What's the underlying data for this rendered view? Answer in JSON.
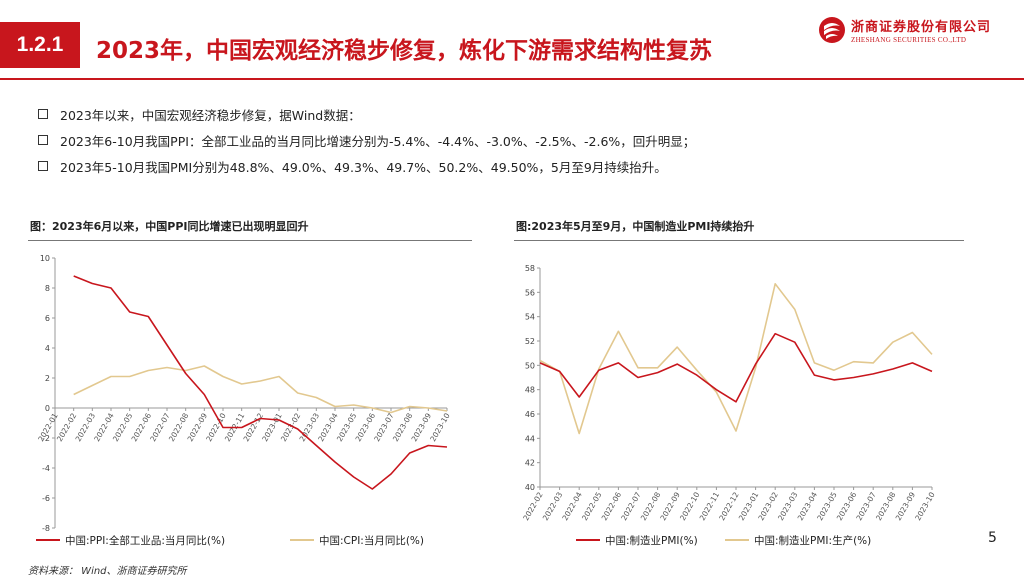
{
  "header": {
    "section": "1.2.1",
    "title": "2023年，中国宏观经济稳步修复，炼化下游需求结构性复苏"
  },
  "logo": {
    "name_cn": "浙商证券股份有限公司",
    "name_en": "ZHESHANG SECURITIES CO.,LTD"
  },
  "bullets": [
    "2023年以来，中国宏观经济稳步修复，据Wind数据：",
    "2023年6-10月我国PPI：全部工业品的当月同比增速分别为-5.4%、-4.4%、-3.0%、-2.5%、-2.6%，回升明显；",
    "2023年5-10月我国PMI分别为48.8%、49.0%、49.3%、49.7%、50.2%、49.50%，5月至9月持续抬升。"
  ],
  "source": "资料来源：  Wind、浙商证券研究所",
  "page_number": "5",
  "colors": {
    "accent": "#c8161d",
    "series_red": "#c8161d",
    "series_gold": "#e2c88f"
  },
  "chart_data": [
    {
      "type": "line",
      "title": "图：2023年6月以来，中国PPI同比增速已出现明显回升",
      "categories": [
        "2022-01",
        "2022-02",
        "2022-03",
        "2022-04",
        "2022-05",
        "2022-06",
        "2022-07",
        "2022-08",
        "2022-09",
        "2022-10",
        "2022-11",
        "2022-12",
        "2023-01",
        "2023-02",
        "2023-03",
        "2023-04",
        "2023-05",
        "2023-06",
        "2023-07",
        "2023-08",
        "2023-09",
        "2023-10"
      ],
      "ylim": [
        -8,
        10
      ],
      "yticks": [
        -8,
        -6,
        -4,
        -2,
        0,
        2,
        4,
        6,
        8,
        10
      ],
      "series": [
        {
          "name": "中国:PPI:全部工业品:当月同比(%)",
          "values": [
            null,
            8.8,
            8.3,
            8.0,
            6.4,
            6.1,
            4.2,
            2.3,
            0.9,
            -1.3,
            -1.3,
            -0.7,
            -0.8,
            -1.4,
            -2.5,
            -3.6,
            -4.6,
            -5.4,
            -4.4,
            -3.0,
            -2.5,
            -2.6
          ]
        },
        {
          "name": "中国:CPI:当月同比(%)",
          "values": [
            null,
            0.9,
            1.5,
            2.1,
            2.1,
            2.5,
            2.7,
            2.5,
            2.8,
            2.1,
            1.6,
            1.8,
            2.1,
            1.0,
            0.7,
            0.1,
            0.2,
            0.0,
            -0.3,
            0.1,
            0.0,
            -0.2
          ]
        }
      ]
    },
    {
      "type": "line",
      "title": "图:2023年5月至9月，中国制造业PMI持续抬升",
      "categories": [
        "2022-02",
        "2022-03",
        "2022-04",
        "2022-05",
        "2022-06",
        "2022-07",
        "2022-08",
        "2022-09",
        "2022-10",
        "2022-11",
        "2022-12",
        "2023-01",
        "2023-02",
        "2023-03",
        "2023-04",
        "2023-05",
        "2023-06",
        "2023-07",
        "2023-08",
        "2023-09",
        "2023-10"
      ],
      "ylim": [
        40,
        58
      ],
      "yticks": [
        40,
        42,
        44,
        46,
        48,
        50,
        52,
        54,
        56,
        58
      ],
      "series": [
        {
          "name": "中国:制造业PMI(%)",
          "values": [
            50.2,
            49.5,
            47.4,
            49.6,
            50.2,
            49.0,
            49.4,
            50.1,
            49.2,
            48.0,
            47.0,
            50.1,
            52.6,
            51.9,
            49.2,
            48.8,
            49.0,
            49.3,
            49.7,
            50.2,
            49.5
          ]
        },
        {
          "name": "中国:制造业PMI:生产(%)",
          "values": [
            50.4,
            49.5,
            44.4,
            49.7,
            52.8,
            49.8,
            49.8,
            51.5,
            49.6,
            47.8,
            44.6,
            49.8,
            56.7,
            54.6,
            50.2,
            49.6,
            50.3,
            50.2,
            51.9,
            52.7,
            50.9
          ]
        }
      ]
    }
  ]
}
